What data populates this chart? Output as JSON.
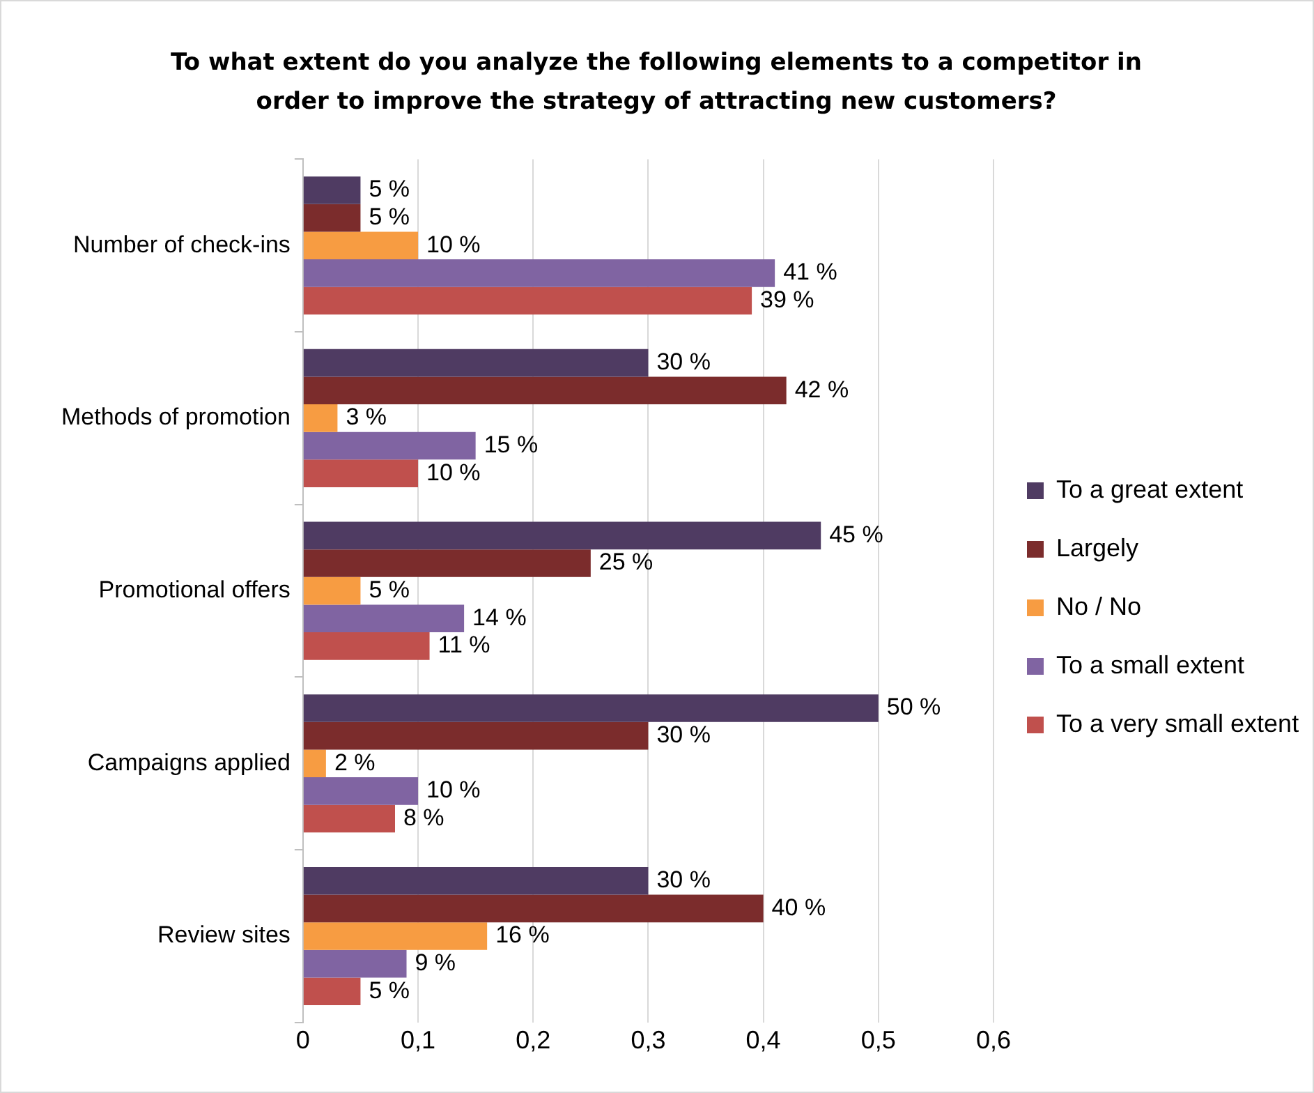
{
  "chart_data": {
    "type": "bar",
    "orientation": "horizontal",
    "title": "To what extent do you analyze the following elements to a competitor in order to improve the strategy of attracting new customers?",
    "categories": [
      "Number of check-ins",
      "Methods of promotion",
      "Promotional offers",
      "Campaigns applied",
      "Review sites"
    ],
    "series": [
      {
        "name": "To a great extent",
        "color": "#4f3b62",
        "values": [
          0.05,
          0.3,
          0.45,
          0.5,
          0.3
        ],
        "value_labels": [
          "5 %",
          "30 %",
          "45 %",
          "50 %",
          "30 %"
        ]
      },
      {
        "name": "Largely",
        "color": "#7b2c2c",
        "values": [
          0.05,
          0.42,
          0.25,
          0.3,
          0.4
        ],
        "value_labels": [
          "5 %",
          "42 %",
          "25 %",
          "30 %",
          "40 %"
        ]
      },
      {
        "name": "No / No",
        "color": "#f79c42",
        "values": [
          0.1,
          0.03,
          0.05,
          0.02,
          0.16
        ],
        "value_labels": [
          "10 %",
          "3 %",
          "5 %",
          "2 %",
          "16 %"
        ]
      },
      {
        "name": "To a small extent",
        "color": "#8064a2",
        "values": [
          0.41,
          0.15,
          0.14,
          0.1,
          0.09
        ],
        "value_labels": [
          "41 %",
          "15 %",
          "14 %",
          "10 %",
          "9 %"
        ]
      },
      {
        "name": "To a very small extent",
        "color": "#c0504d",
        "values": [
          0.39,
          0.1,
          0.11,
          0.08,
          0.05
        ],
        "value_labels": [
          "39 %",
          "10 %",
          "11 %",
          "8 %",
          "5 %"
        ]
      }
    ],
    "xlim": [
      0,
      0.6
    ],
    "xticks": [
      0,
      {
        "value": 0.1,
        "label": "0,1"
      },
      {
        "value": 0.2,
        "label": "0,2"
      },
      {
        "value": 0.3,
        "label": "0,3"
      },
      {
        "value": 0.4,
        "label": "0,4"
      },
      {
        "value": 0.5,
        "label": "0,5"
      },
      {
        "value": 0.6,
        "label": "0,6"
      }
    ],
    "grid": "x",
    "legend": "right"
  }
}
